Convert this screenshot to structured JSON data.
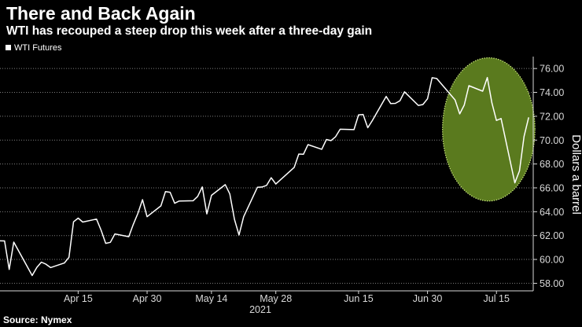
{
  "header": {
    "title": "There and Back Again",
    "subtitle": "WTI has recouped a steep drop this week after a three-day gain"
  },
  "footer": {
    "source": "Source: Nymex"
  },
  "colors": {
    "background": "#000000",
    "line": "#ffffff",
    "grid": "#7f7f7f",
    "highlight_fill": "#5a7a1e",
    "highlight_stroke": "#c9e87a"
  },
  "chart_data": {
    "type": "line",
    "title": "There and Back Again",
    "subtitle": "WTI has recouped a steep drop this week after a three-day gain",
    "xlabel": "",
    "xlabel_year": "2021",
    "ylabel": "Dollars a barrel",
    "ylim": [
      57.5,
      77
    ],
    "yticks": [
      58,
      60,
      62,
      64,
      66,
      68,
      70,
      72,
      74,
      76
    ],
    "ytick_labels": [
      "58.00",
      "60.00",
      "62.00",
      "64.00",
      "66.00",
      "68.00",
      "70.00",
      "72.00",
      "74.00",
      "76.00"
    ],
    "xticks": [
      "Apr 15",
      "Apr 30",
      "May 14",
      "May 28",
      "Jun 15",
      "Jun 30",
      "Jul 15"
    ],
    "xtick_positions": [
      "2021-04-15",
      "2021-04-30",
      "2021-05-14",
      "2021-05-28",
      "2021-06-15",
      "2021-06-30",
      "2021-07-15"
    ],
    "xlim": [
      "2021-03-29",
      "2021-07-23"
    ],
    "grid": true,
    "legend": "top-left",
    "annotation": "highlight ellipse around the July drop and recovery",
    "series": [
      {
        "name": "WTI Futures",
        "x": [
          "2021-03-29",
          "2021-03-30",
          "2021-03-31",
          "2021-04-01",
          "2021-04-05",
          "2021-04-06",
          "2021-04-07",
          "2021-04-08",
          "2021-04-09",
          "2021-04-12",
          "2021-04-13",
          "2021-04-14",
          "2021-04-15",
          "2021-04-16",
          "2021-04-19",
          "2021-04-20",
          "2021-04-21",
          "2021-04-22",
          "2021-04-23",
          "2021-04-26",
          "2021-04-27",
          "2021-04-28",
          "2021-04-29",
          "2021-04-30",
          "2021-05-03",
          "2021-05-04",
          "2021-05-05",
          "2021-05-06",
          "2021-05-07",
          "2021-05-10",
          "2021-05-11",
          "2021-05-12",
          "2021-05-13",
          "2021-05-14",
          "2021-05-17",
          "2021-05-18",
          "2021-05-19",
          "2021-05-20",
          "2021-05-21",
          "2021-05-24",
          "2021-05-25",
          "2021-05-26",
          "2021-05-27",
          "2021-05-28",
          "2021-06-01",
          "2021-06-02",
          "2021-06-03",
          "2021-06-04",
          "2021-06-07",
          "2021-06-08",
          "2021-06-09",
          "2021-06-10",
          "2021-06-11",
          "2021-06-14",
          "2021-06-15",
          "2021-06-16",
          "2021-06-17",
          "2021-06-18",
          "2021-06-21",
          "2021-06-22",
          "2021-06-23",
          "2021-06-24",
          "2021-06-25",
          "2021-06-28",
          "2021-06-29",
          "2021-06-30",
          "2021-07-01",
          "2021-07-02",
          "2021-07-06",
          "2021-07-07",
          "2021-07-08",
          "2021-07-09",
          "2021-07-12",
          "2021-07-13",
          "2021-07-14",
          "2021-07-15",
          "2021-07-16",
          "2021-07-19",
          "2021-07-20",
          "2021-07-21",
          "2021-07-22"
        ],
        "values": [
          61.56,
          61.55,
          59.16,
          61.45,
          58.65,
          59.33,
          59.77,
          59.6,
          59.32,
          59.7,
          60.18,
          63.15,
          63.46,
          63.13,
          63.38,
          62.44,
          61.35,
          61.43,
          62.14,
          61.91,
          62.94,
          63.86,
          65.01,
          63.58,
          64.49,
          65.69,
          65.63,
          64.71,
          64.9,
          64.92,
          65.28,
          66.08,
          63.82,
          65.37,
          66.27,
          65.49,
          63.36,
          62.05,
          63.58,
          66.05,
          66.07,
          66.21,
          66.85,
          66.32,
          67.72,
          68.83,
          68.81,
          69.62,
          69.23,
          70.05,
          69.96,
          70.29,
          70.91,
          70.88,
          72.12,
          72.15,
          71.04,
          71.64,
          73.66,
          73.06,
          73.08,
          73.3,
          74.05,
          72.91,
          72.98,
          73.47,
          75.23,
          75.16,
          73.37,
          72.2,
          72.94,
          74.56,
          74.1,
          75.25,
          73.13,
          71.65,
          71.81,
          66.42,
          67.42,
          70.3,
          71.91
        ]
      }
    ]
  }
}
